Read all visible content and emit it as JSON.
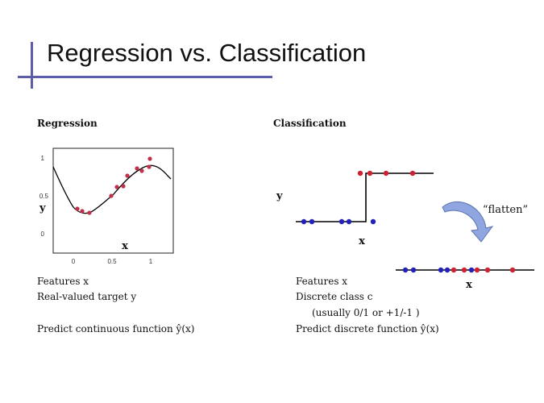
{
  "slide": {
    "title": "Regression vs. Classification",
    "accent_color": "#5c5ca8"
  },
  "regression": {
    "heading": "Regression",
    "features": "Features x",
    "target": "Real-valued target  y",
    "predict": "Predict continuous function  ŷ(x)",
    "plot": {
      "xlabel": "x",
      "ylabel": "y",
      "x_ticks": [
        "0",
        "0.5",
        "1"
      ],
      "y_ticks": [
        "1",
        "0.5",
        "0"
      ]
    }
  },
  "classification": {
    "heading": "Classification",
    "features": "Features x",
    "class_line": "Discrete class  c",
    "class_note": "(usually 0/1  or +1/-1 )",
    "predict": "Predict discrete function  ŷ(x)",
    "ylabel": "y",
    "xlabel": "x",
    "flatten_label": "“flatten”",
    "flat_xlabel": "x",
    "class_colors": {
      "class0": "#2222bb",
      "class1": "#cc2233"
    },
    "arrow_color": "#8fa6e0"
  }
}
